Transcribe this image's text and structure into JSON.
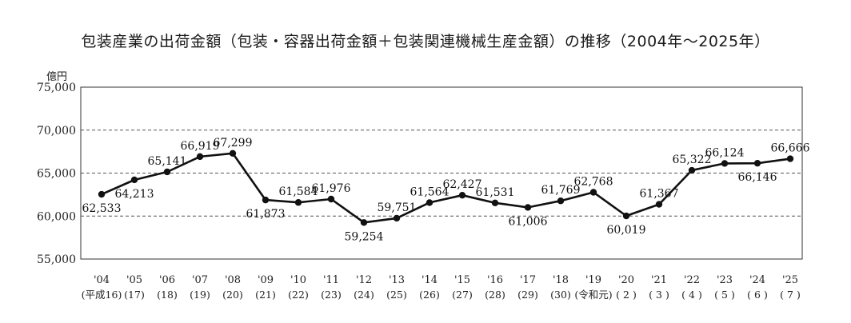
{
  "chart_data": {
    "type": "line",
    "title": "包装産業の出荷金額（包装・容器出荷金額＋包装関連機械生産金額）の推移（2004年～2025年）",
    "ylabel": "億円",
    "ylim": [
      55000,
      75000
    ],
    "yticks": [
      "55,000",
      "60,000",
      "65,000",
      "70,000",
      "75,000"
    ],
    "ytick_values": [
      55000,
      60000,
      65000,
      70000,
      75000
    ],
    "dashed_gridlines": [
      60000,
      65000,
      70000
    ],
    "grid": true,
    "legend": "none",
    "color": "#111111",
    "x_labels": [
      "'04",
      "'05",
      "'06",
      "'07",
      "'08",
      "'09",
      "'10",
      "'11",
      "'12",
      "'13",
      "'14",
      "'15",
      "'16",
      "'17",
      "'18",
      "'19",
      "'20",
      "'21",
      "'22",
      "'23",
      "'24",
      "'25"
    ],
    "x_sublabels": [
      "(平成16)",
      "(17)",
      "(18)",
      "(19)",
      "(20)",
      "(21)",
      "(22)",
      "(23)",
      "(24)",
      "(25)",
      "(26)",
      "(27)",
      "(28)",
      "(29)",
      "(30)",
      "(令和元)",
      "( 2 )",
      "( 3 )",
      "( 4 )",
      "( 5 )",
      "( 6 )",
      "( 7 )"
    ],
    "values": [
      62533,
      64213,
      65141,
      66919,
      67299,
      61873,
      61584,
      61976,
      59254,
      59751,
      61564,
      62427,
      61531,
      61006,
      61769,
      62768,
      60019,
      61367,
      65322,
      66124,
      66146,
      66666
    ],
    "data_labels": [
      "62,533",
      "64,213",
      "65,141",
      "66,919",
      "67,299",
      "61,873",
      "61,584",
      "61,976",
      "59,254",
      "59,751",
      "61,564",
      "62,427",
      "61,531",
      "61,006",
      "61,769",
      "62,768",
      "60,019",
      "61,367",
      "65,322",
      "66,124",
      "66,146",
      "66,666"
    ],
    "label_positions": [
      "below",
      "below",
      "above",
      "above",
      "above",
      "below",
      "above",
      "above",
      "below",
      "above",
      "above",
      "above",
      "above",
      "below",
      "above",
      "above",
      "below",
      "above",
      "above",
      "above",
      "below",
      "above"
    ]
  }
}
